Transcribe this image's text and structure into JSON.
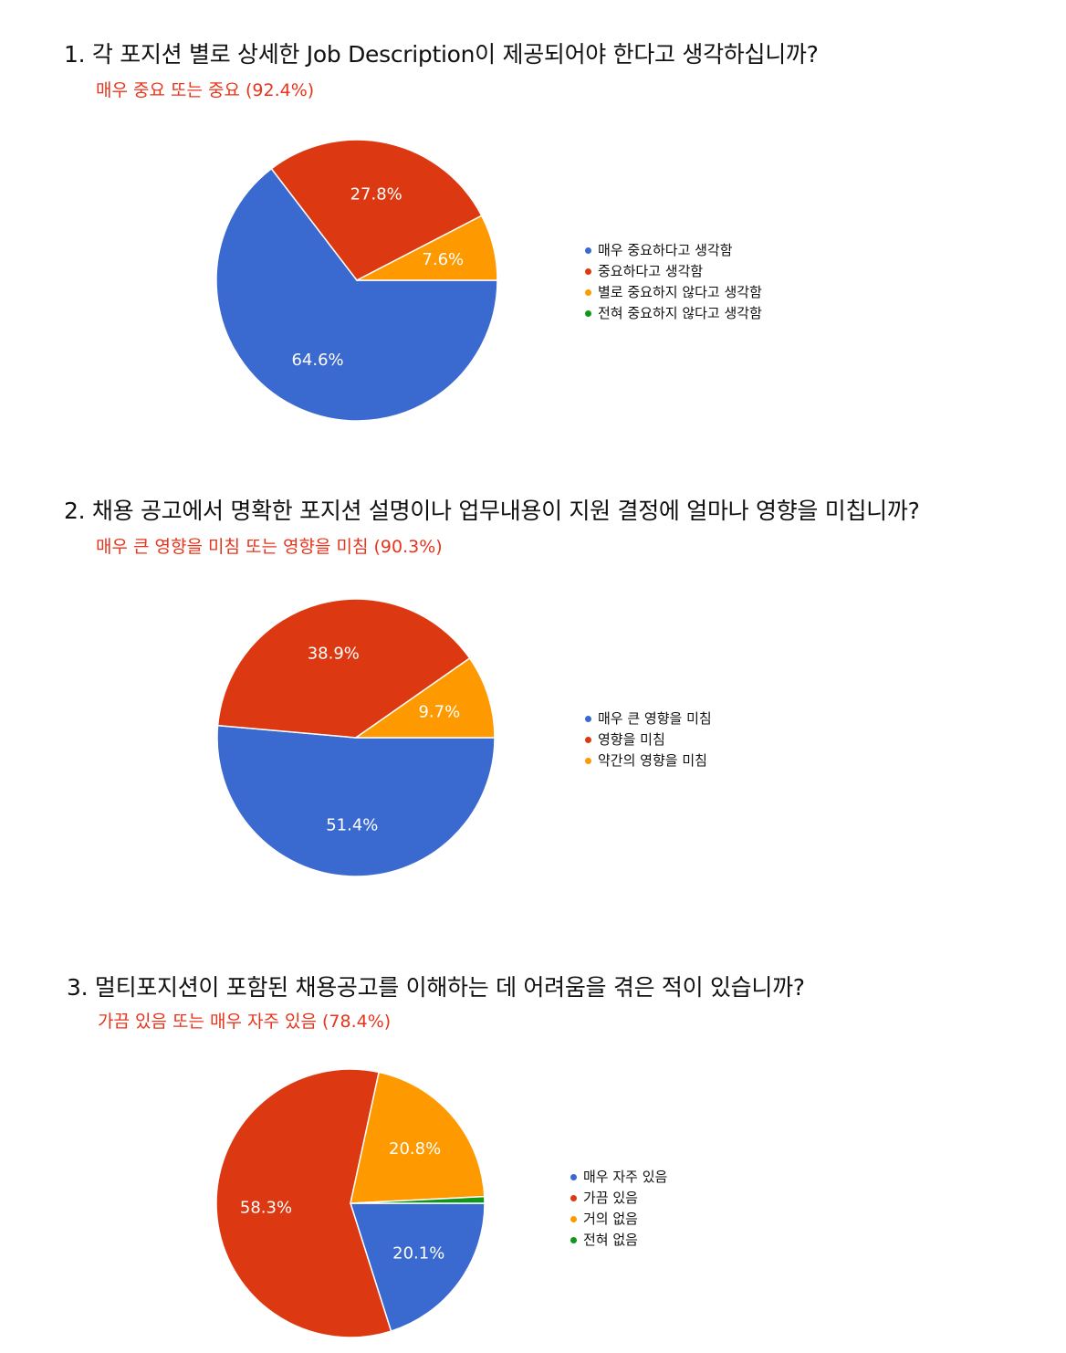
{
  "chart_data": [
    {
      "type": "pie",
      "title": "1. 각 포지션 별로 상세한 Job Description이 제공되어야 한다고 생각하십니까?",
      "subtitle": "매우 중요 또는 중요 (92.4%)",
      "series": [
        {
          "name": "매우 중요하다고 생각함",
          "value": 64.6,
          "label": "64.6%",
          "color": "#3a69cf"
        },
        {
          "name": "중요하다고 생각함",
          "value": 27.8,
          "label": "27.8%",
          "color": "#dc3912"
        },
        {
          "name": "별로 중요하지 않다고 생각함",
          "value": 7.6,
          "label": "7.6%",
          "color": "#ff9900"
        },
        {
          "name": "전혀 중요하지 않다고 생각함",
          "value": 0,
          "label": "",
          "color": "#109618"
        }
      ],
      "legend_position": "right"
    },
    {
      "type": "pie",
      "title": "2. 채용 공고에서 명확한 포지션 설명이나 업무내용이 지원 결정에 얼마나 영향을 미칩니까?",
      "subtitle": "매우 큰 영향을 미침 또는 영향을 미침 (90.3%)",
      "series": [
        {
          "name": "매우 큰 영향을 미침",
          "value": 51.4,
          "label": "51.4%",
          "color": "#3a69cf"
        },
        {
          "name": "영향을 미침",
          "value": 38.9,
          "label": "38.9%",
          "color": "#dc3912"
        },
        {
          "name": "약간의 영향을 미침",
          "value": 9.7,
          "label": "9.7%",
          "color": "#ff9900"
        }
      ],
      "legend_position": "right"
    },
    {
      "type": "pie",
      "title": "3. 멀티포지션이 포함된 채용공고를 이해하는 데 어려움을 겪은 적이 있습니까?",
      "subtitle": "가끔 있음 또는 매우 자주 있음 (78.4%)",
      "series": [
        {
          "name": "매우 자주 있음",
          "value": 20.1,
          "label": "20.1%",
          "color": "#3a69cf"
        },
        {
          "name": "가끔 있음",
          "value": 58.3,
          "label": "58.3%",
          "color": "#dc3912"
        },
        {
          "name": "거의 없음",
          "value": 20.8,
          "label": "20.8%",
          "color": "#ff9900"
        },
        {
          "name": "전혀 없음",
          "value": 0.8,
          "label": "",
          "color": "#109618"
        }
      ],
      "legend_position": "right"
    }
  ]
}
